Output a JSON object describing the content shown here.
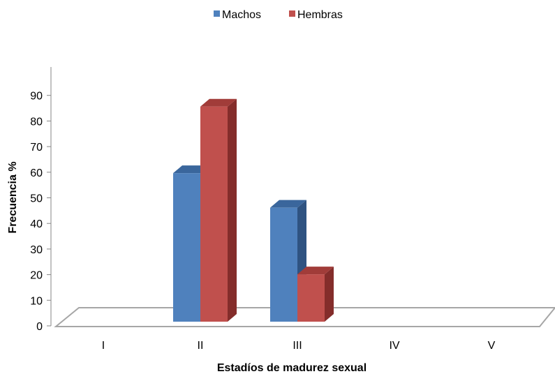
{
  "chart_data": {
    "type": "bar",
    "title": "",
    "xlabel": "Estadíos de madurez sexual",
    "ylabel": "Frecuencia %",
    "categories": [
      "I",
      "II",
      "III",
      "IV",
      "V"
    ],
    "series": [
      {
        "name": "Machos",
        "values": [
          0,
          58,
          44.5,
          0,
          0
        ]
      },
      {
        "name": "Hembras",
        "values": [
          0,
          84,
          18.5,
          0,
          0
        ]
      }
    ],
    "ylim": [
      0,
      90
    ],
    "yticks": [
      0,
      10,
      20,
      30,
      40,
      50,
      60,
      70,
      80,
      90
    ],
    "grid": false,
    "legend_position": "top",
    "three_d": true
  },
  "colors": {
    "Machos": {
      "front": "#4f81bd",
      "side": "#2f5381",
      "top": "#3a669c"
    },
    "Hembras": {
      "front": "#c0504d",
      "side": "#842d2b",
      "top": "#a13c39"
    },
    "floor": "#a6a6a6",
    "axis": "#868686"
  }
}
